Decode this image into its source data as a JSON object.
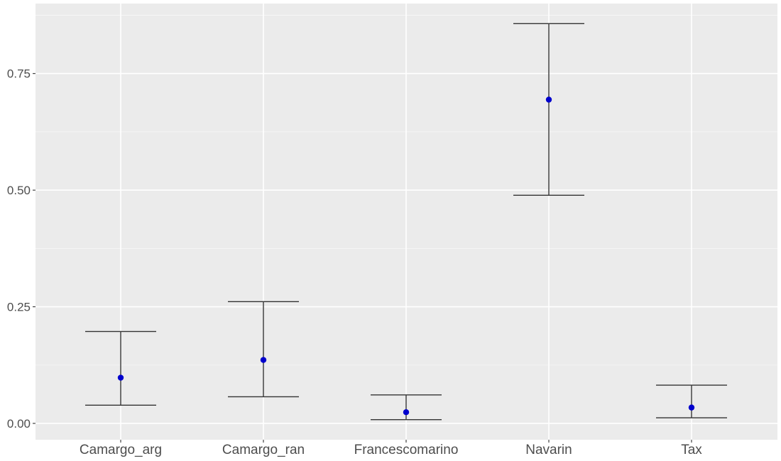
{
  "chart_data": {
    "type": "errorbar",
    "title": "",
    "xlabel": "",
    "ylabel": "",
    "categories": [
      "Camargo_arg",
      "Camargo_ran",
      "Francescomarino",
      "Navarin",
      "Tax"
    ],
    "series": [
      {
        "values": [
          0.098,
          0.136,
          0.024,
          0.694,
          0.034
        ],
        "lower": [
          0.039,
          0.057,
          0.008,
          0.489,
          0.012
        ],
        "upper": [
          0.197,
          0.261,
          0.061,
          0.857,
          0.082
        ]
      }
    ],
    "ylim": [
      -0.035,
      0.9
    ],
    "yticks": [
      0.0,
      0.25,
      0.5,
      0.75
    ],
    "ytick_labels": [
      "0.00",
      "0.25",
      "0.50",
      "0.75"
    ],
    "grid": true,
    "legend": "none",
    "colors": {
      "panel_background": "#ebebeb",
      "grid_major": "#ffffff",
      "point": "#0000cd",
      "errorbar": "#333333",
      "tick_label": "#4d4d4d"
    }
  }
}
